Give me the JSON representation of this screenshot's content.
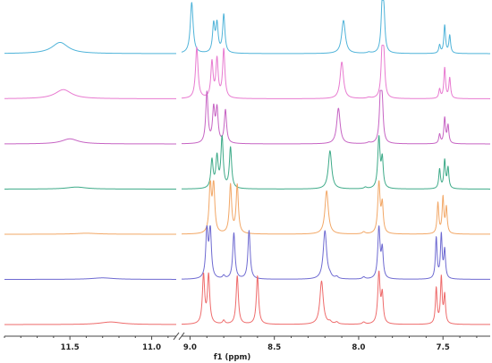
{
  "chart_data": {
    "type": "line",
    "title": "",
    "xlabel": "f1 (ppm)",
    "ylabel": "",
    "x_reversed": true,
    "axis_break": [
      10.85,
      9.05
    ],
    "xlim": [
      11.9,
      7.22
    ],
    "xticks": [
      {
        "value": 11.5,
        "label": "11.5"
      },
      {
        "value": 11.0,
        "label": "11.0"
      },
      {
        "value": 9.0,
        "label": "9.0"
      },
      {
        "value": 8.5,
        "label": "8.5"
      },
      {
        "value": 8.0,
        "label": "8.0"
      },
      {
        "value": 7.5,
        "label": "7.5"
      }
    ],
    "series": [
      {
        "color": "#4fb3d9",
        "peaks": [
          [
            11.56,
            0.22,
            0.06
          ],
          [
            8.99,
            1.0,
            0.01
          ],
          [
            8.86,
            0.55,
            0.008
          ],
          [
            8.84,
            0.55,
            0.008
          ],
          [
            8.8,
            0.75,
            0.008
          ],
          [
            8.09,
            0.65,
            0.013
          ],
          [
            7.94,
            0.02,
            0.012
          ],
          [
            7.86,
            0.98,
            0.008
          ],
          [
            7.85,
            0.6,
            0.007
          ],
          [
            7.52,
            0.16,
            0.006
          ],
          [
            7.49,
            0.55,
            0.006
          ],
          [
            7.46,
            0.35,
            0.006
          ]
        ]
      },
      {
        "color": "#e87ad0",
        "peaks": [
          [
            11.54,
            0.18,
            0.06
          ],
          [
            8.96,
            1.0,
            0.009
          ],
          [
            8.87,
            0.7,
            0.008
          ],
          [
            8.84,
            0.75,
            0.008
          ],
          [
            8.8,
            0.95,
            0.008
          ],
          [
            8.1,
            0.72,
            0.012
          ],
          [
            7.94,
            0.02,
            0.012
          ],
          [
            7.86,
            1.0,
            0.008
          ],
          [
            7.85,
            0.6,
            0.007
          ],
          [
            7.52,
            0.18,
            0.006
          ],
          [
            7.49,
            0.6,
            0.006
          ],
          [
            7.46,
            0.4,
            0.006
          ]
        ]
      },
      {
        "color": "#c663c3",
        "peaks": [
          [
            11.5,
            0.1,
            0.06
          ],
          [
            8.9,
            1.0,
            0.008
          ],
          [
            8.86,
            0.65,
            0.008
          ],
          [
            8.84,
            0.65,
            0.008
          ],
          [
            8.79,
            0.65,
            0.008
          ],
          [
            8.12,
            0.7,
            0.012
          ],
          [
            7.94,
            0.02,
            0.012
          ],
          [
            7.87,
            1.0,
            0.008
          ],
          [
            7.86,
            0.6,
            0.007
          ],
          [
            7.52,
            0.18,
            0.006
          ],
          [
            7.49,
            0.5,
            0.006
          ],
          [
            7.47,
            0.35,
            0.006
          ]
        ]
      },
      {
        "color": "#3daa88",
        "peaks": [
          [
            11.46,
            0.04,
            0.07
          ],
          [
            8.87,
            0.55,
            0.008
          ],
          [
            8.84,
            0.6,
            0.008
          ],
          [
            8.81,
            1.0,
            0.008
          ],
          [
            8.76,
            0.8,
            0.008
          ],
          [
            8.17,
            0.75,
            0.012
          ],
          [
            7.96,
            0.03,
            0.01
          ],
          [
            7.88,
            1.0,
            0.008
          ],
          [
            7.86,
            0.55,
            0.007
          ],
          [
            7.52,
            0.38,
            0.006
          ],
          [
            7.49,
            0.55,
            0.006
          ],
          [
            7.47,
            0.4,
            0.006
          ]
        ]
      },
      {
        "color": "#f2a766",
        "peaks": [
          [
            11.4,
            0.02,
            0.08
          ],
          [
            8.88,
            0.95,
            0.008
          ],
          [
            8.86,
            0.95,
            0.008
          ],
          [
            8.76,
            0.95,
            0.008
          ],
          [
            8.72,
            0.95,
            0.008
          ],
          [
            8.19,
            0.85,
            0.012
          ],
          [
            7.97,
            0.04,
            0.01
          ],
          [
            7.88,
            1.0,
            0.008
          ],
          [
            7.86,
            0.55,
            0.007
          ],
          [
            7.53,
            0.6,
            0.006
          ],
          [
            7.5,
            0.7,
            0.006
          ],
          [
            7.48,
            0.5,
            0.006
          ]
        ]
      },
      {
        "color": "#6e6ad1",
        "peaks": [
          [
            11.3,
            0.03,
            0.08
          ],
          [
            8.9,
            0.95,
            0.008
          ],
          [
            8.88,
            0.95,
            0.008
          ],
          [
            8.8,
            0.06,
            0.008
          ],
          [
            8.74,
            0.9,
            0.008
          ],
          [
            8.65,
            0.95,
            0.008
          ],
          [
            8.2,
            0.95,
            0.012
          ],
          [
            8.17,
            0.04,
            0.01
          ],
          [
            8.13,
            0.04,
            0.01
          ],
          [
            7.97,
            0.04,
            0.01
          ],
          [
            7.88,
            1.0,
            0.008
          ],
          [
            7.86,
            0.55,
            0.007
          ],
          [
            7.54,
            0.8,
            0.006
          ],
          [
            7.51,
            0.85,
            0.006
          ],
          [
            7.49,
            0.55,
            0.006
          ]
        ]
      },
      {
        "color": "#ee6b6b",
        "peaks": [
          [
            11.25,
            0.05,
            0.08
          ],
          [
            8.92,
            0.95,
            0.008
          ],
          [
            8.89,
            0.95,
            0.008
          ],
          [
            8.8,
            0.07,
            0.008
          ],
          [
            8.72,
            0.95,
            0.008
          ],
          [
            8.6,
            0.95,
            0.008
          ],
          [
            8.22,
            0.85,
            0.012
          ],
          [
            8.17,
            0.04,
            0.01
          ],
          [
            8.13,
            0.04,
            0.01
          ],
          [
            7.97,
            0.04,
            0.01
          ],
          [
            7.88,
            1.0,
            0.008
          ],
          [
            7.86,
            0.55,
            0.007
          ],
          [
            7.54,
            0.7,
            0.006
          ],
          [
            7.51,
            0.9,
            0.006
          ],
          [
            7.49,
            0.55,
            0.006
          ]
        ]
      }
    ]
  }
}
